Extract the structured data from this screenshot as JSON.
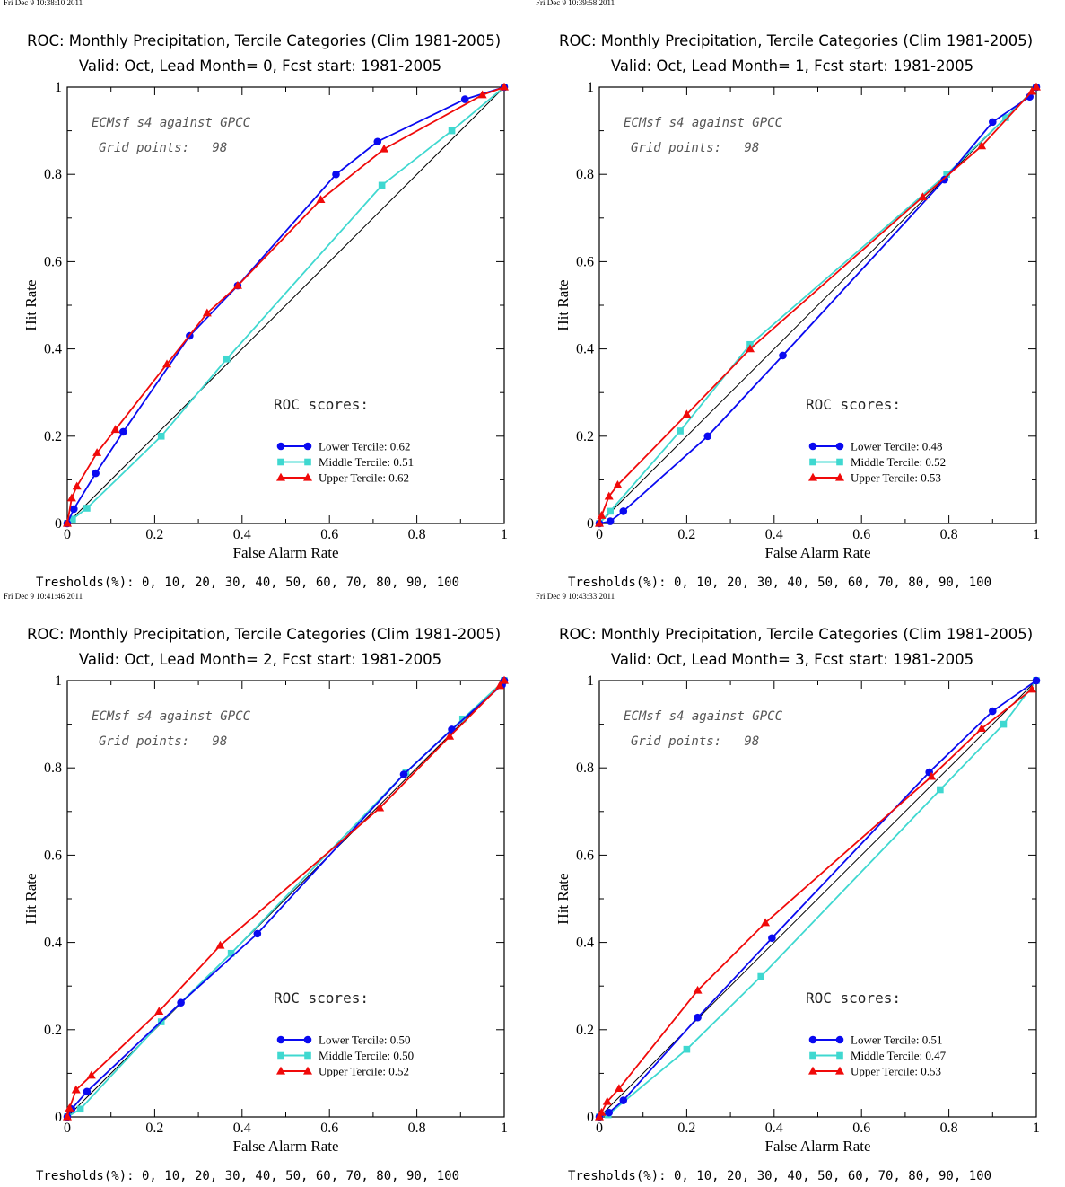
{
  "colors": {
    "lower": "#0a0af0",
    "middle": "#3fd8d0",
    "upper": "#f00a0a",
    "diagonal": "#000000"
  },
  "panels": [
    {
      "timestamp": "Fri Dec  9 10:38:10 2011",
      "title_line1": "ROC: Monthly Precipitation, Tercile Categories (Clim 1981-2005)",
      "title_line2": "Valid: Oct, Lead Month= 0, Fcst start: 1981-2005",
      "annotation_model": "ECMsf s4 against GPCC",
      "annotation_grid": "Grid points:   98",
      "scores_heading": "ROC scores:",
      "legend": [
        "Lower Tercile: 0.62",
        "Middle Tercile: 0.51",
        "Upper Tercile: 0.62"
      ],
      "thresholds": "Tresholds(%): 0, 10, 20, 30, 40, 50, 60, 70, 80, 90, 100"
    },
    {
      "timestamp": "Fri Dec  9 10:39:58 2011",
      "title_line1": "ROC: Monthly Precipitation, Tercile Categories (Clim 1981-2005)",
      "title_line2": "Valid: Oct, Lead Month= 1, Fcst start: 1981-2005",
      "annotation_model": "ECMsf s4 against GPCC",
      "annotation_grid": "Grid points:   98",
      "scores_heading": "ROC scores:",
      "legend": [
        "Lower Tercile: 0.48",
        "Middle Tercile: 0.52",
        "Upper Tercile: 0.53"
      ],
      "thresholds": "Tresholds(%): 0, 10, 20, 30, 40, 50, 60, 70, 80, 90, 100"
    },
    {
      "timestamp": "Fri Dec  9 10:41:46 2011",
      "title_line1": "ROC: Monthly Precipitation, Tercile Categories (Clim 1981-2005)",
      "title_line2": "Valid: Oct, Lead Month= 2, Fcst start: 1981-2005",
      "annotation_model": "ECMsf s4 against GPCC",
      "annotation_grid": "Grid points:   98",
      "scores_heading": "ROC scores:",
      "legend": [
        "Lower Tercile: 0.50",
        "Middle Tercile: 0.50",
        "Upper Tercile: 0.52"
      ],
      "thresholds": "Tresholds(%): 0, 10, 20, 30, 40, 50, 60, 70, 80, 90, 100"
    },
    {
      "timestamp": "Fri Dec  9 10:43:33 2011",
      "title_line1": "ROC: Monthly Precipitation, Tercile Categories (Clim 1981-2005)",
      "title_line2": "Valid: Oct, Lead Month= 3, Fcst start: 1981-2005",
      "annotation_model": "ECMsf s4 against GPCC",
      "annotation_grid": "Grid points:   98",
      "scores_heading": "ROC scores:",
      "legend": [
        "Lower Tercile: 0.51",
        "Middle Tercile: 0.47",
        "Upper Tercile: 0.53"
      ],
      "thresholds": "Tresholds(%): 0, 10, 20, 30, 40, 50, 60, 70, 80, 90, 100"
    }
  ],
  "chart_data": [
    {
      "type": "line",
      "title": "ROC: Monthly Precipitation, Tercile Categories (Clim 1981-2005)",
      "subtitle": "Valid: Oct, Lead Month= 0, Fcst start: 1981-2005",
      "xlabel": "False Alarm Rate",
      "ylabel": "Hit Rate",
      "xlim": [
        0,
        1
      ],
      "ylim": [
        0,
        1
      ],
      "xticks": [
        "0",
        "0.2",
        "0.4",
        "0.6",
        "0.8",
        "1"
      ],
      "yticks": [
        "0",
        "0.2",
        "0.4",
        "0.6",
        "0.8",
        "1"
      ],
      "legend_position": "bottom-right",
      "series": [
        {
          "name": "Lower Tercile: 0.62",
          "marker": "circle",
          "x": [
            0,
            0.015,
            0.065,
            0.128,
            0.28,
            0.39,
            0.615,
            0.71,
            0.91,
            1.0
          ],
          "y": [
            0,
            0.033,
            0.115,
            0.21,
            0.43,
            0.545,
            0.8,
            0.875,
            0.972,
            1.0
          ]
        },
        {
          "name": "Middle Tercile: 0.51",
          "marker": "square",
          "x": [
            0,
            0.012,
            0.045,
            0.215,
            0.365,
            0.72,
            0.88,
            1.0
          ],
          "y": [
            0,
            0.01,
            0.035,
            0.2,
            0.377,
            0.775,
            0.9,
            1.0
          ]
        },
        {
          "name": "Upper Tercile: 0.62",
          "marker": "triangle",
          "x": [
            0,
            0.01,
            0.022,
            0.068,
            0.11,
            0.228,
            0.32,
            0.39,
            0.58,
            0.725,
            0.95,
            1.0
          ],
          "y": [
            0,
            0.058,
            0.085,
            0.162,
            0.215,
            0.365,
            0.482,
            0.545,
            0.742,
            0.858,
            0.982,
            1.0
          ]
        }
      ]
    },
    {
      "type": "line",
      "title": "ROC: Monthly Precipitation, Tercile Categories (Clim 1981-2005)",
      "subtitle": "Valid: Oct, Lead Month= 1, Fcst start: 1981-2005",
      "xlabel": "False Alarm Rate",
      "ylabel": "Hit Rate",
      "xlim": [
        0,
        1
      ],
      "ylim": [
        0,
        1
      ],
      "xticks": [
        "0",
        "0.2",
        "0.4",
        "0.6",
        "0.8",
        "1"
      ],
      "yticks": [
        "0",
        "0.2",
        "0.4",
        "0.6",
        "0.8",
        "1"
      ],
      "legend_position": "bottom-right",
      "series": [
        {
          "name": "Lower Tercile: 0.48",
          "marker": "circle",
          "x": [
            0,
            0.025,
            0.055,
            0.248,
            0.42,
            0.79,
            0.9,
            0.985,
            1.0
          ],
          "y": [
            0,
            0.005,
            0.028,
            0.2,
            0.385,
            0.788,
            0.92,
            0.978,
            1.0
          ]
        },
        {
          "name": "Middle Tercile: 0.52",
          "marker": "square",
          "x": [
            0,
            0.025,
            0.185,
            0.345,
            0.795,
            0.93,
            1.0
          ],
          "y": [
            0,
            0.028,
            0.212,
            0.41,
            0.8,
            0.93,
            1.0
          ]
        },
        {
          "name": "Upper Tercile: 0.53",
          "marker": "triangle",
          "x": [
            0,
            0.005,
            0.022,
            0.042,
            0.2,
            0.345,
            0.74,
            0.875,
            0.99,
            1.0
          ],
          "y": [
            0,
            0.018,
            0.062,
            0.088,
            0.25,
            0.4,
            0.748,
            0.865,
            0.99,
            1.0
          ]
        }
      ]
    },
    {
      "type": "line",
      "title": "ROC: Monthly Precipitation, Tercile Categories (Clim 1981-2005)",
      "subtitle": "Valid: Oct, Lead Month= 2, Fcst start: 1981-2005",
      "xlabel": "False Alarm Rate",
      "ylabel": "Hit Rate",
      "xlim": [
        0,
        1
      ],
      "ylim": [
        0,
        1
      ],
      "xticks": [
        "0",
        "0.2",
        "0.4",
        "0.6",
        "0.8",
        "1"
      ],
      "yticks": [
        "0",
        "0.2",
        "0.4",
        "0.6",
        "0.8",
        "1"
      ],
      "legend_position": "bottom-right",
      "series": [
        {
          "name": "Lower Tercile: 0.50",
          "marker": "circle",
          "x": [
            0,
            0.01,
            0.045,
            0.26,
            0.435,
            0.77,
            0.88,
            0.995,
            1.0
          ],
          "y": [
            0,
            0.018,
            0.058,
            0.262,
            0.42,
            0.785,
            0.888,
            0.99,
            1.0
          ]
        },
        {
          "name": "Middle Tercile: 0.50",
          "marker": "square",
          "x": [
            0,
            0.03,
            0.215,
            0.375,
            0.775,
            0.905,
            1.0
          ],
          "y": [
            0,
            0.018,
            0.218,
            0.375,
            0.79,
            0.912,
            1.0
          ]
        },
        {
          "name": "Upper Tercile: 0.52",
          "marker": "triangle",
          "x": [
            0,
            0.005,
            0.02,
            0.055,
            0.21,
            0.35,
            0.715,
            0.875,
            0.99,
            1.0
          ],
          "y": [
            0,
            0.02,
            0.062,
            0.095,
            0.242,
            0.393,
            0.708,
            0.872,
            0.988,
            1.0
          ]
        }
      ]
    },
    {
      "type": "line",
      "title": "ROC: Monthly Precipitation, Tercile Categories (Clim 1981-2005)",
      "subtitle": "Valid: Oct, Lead Month= 3, Fcst start: 1981-2005",
      "xlabel": "False Alarm Rate",
      "ylabel": "Hit Rate",
      "xlim": [
        0,
        1
      ],
      "ylim": [
        0,
        1
      ],
      "xticks": [
        "0",
        "0.2",
        "0.4",
        "0.6",
        "0.8",
        "1"
      ],
      "yticks": [
        "0",
        "0.2",
        "0.4",
        "0.6",
        "0.8",
        "1"
      ],
      "legend_position": "bottom-right",
      "series": [
        {
          "name": "Lower Tercile: 0.51",
          "marker": "circle",
          "x": [
            0,
            0.022,
            0.055,
            0.225,
            0.395,
            0.755,
            0.9,
            1.0
          ],
          "y": [
            0,
            0.01,
            0.038,
            0.228,
            0.41,
            0.79,
            0.93,
            1.0
          ]
        },
        {
          "name": "Middle Tercile: 0.47",
          "marker": "square",
          "x": [
            0,
            0.02,
            0.2,
            0.37,
            0.78,
            0.925,
            1.0
          ],
          "y": [
            0,
            0.005,
            0.155,
            0.322,
            0.75,
            0.9,
            1.0
          ]
        },
        {
          "name": "Upper Tercile: 0.53",
          "marker": "triangle",
          "x": [
            0,
            0.005,
            0.018,
            0.045,
            0.225,
            0.38,
            0.76,
            0.875,
            0.99
          ],
          "y": [
            0,
            0.01,
            0.035,
            0.065,
            0.29,
            0.445,
            0.78,
            0.89,
            0.98
          ]
        }
      ]
    }
  ]
}
